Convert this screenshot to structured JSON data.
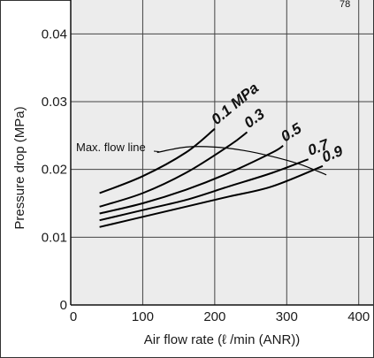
{
  "chart_data": {
    "type": "line",
    "title": "",
    "xlabel": "Air flow rate (ℓ /min (ANR))",
    "ylabel": "Pressure drop (MPa)",
    "xlim": [
      0,
      420
    ],
    "ylim": [
      0,
      0.045
    ],
    "x_ticks": [
      "0",
      "100",
      "200",
      "300",
      "400"
    ],
    "y_ticks": [
      "0",
      "0.01",
      "0.02",
      "0.03",
      "0.04"
    ],
    "grid": true,
    "series": [
      {
        "name": "0.1 MPa",
        "x": [
          40,
          100,
          160,
          200
        ],
        "y": [
          0.0165,
          0.019,
          0.0225,
          0.026
        ]
      },
      {
        "name": "0.3",
        "x": [
          40,
          100,
          160,
          220,
          245
        ],
        "y": [
          0.0145,
          0.0165,
          0.0195,
          0.0235,
          0.0255
        ]
      },
      {
        "name": "0.5",
        "x": [
          40,
          100,
          160,
          220,
          280,
          295
        ],
        "y": [
          0.0135,
          0.015,
          0.017,
          0.0195,
          0.0225,
          0.0235
        ]
      },
      {
        "name": "0.7",
        "x": [
          40,
          100,
          160,
          220,
          280,
          330
        ],
        "y": [
          0.0125,
          0.014,
          0.0155,
          0.0175,
          0.0195,
          0.0215
        ]
      },
      {
        "name": "0.9",
        "x": [
          40,
          100,
          160,
          220,
          280,
          350
        ],
        "y": [
          0.0115,
          0.013,
          0.0145,
          0.016,
          0.0175,
          0.0205
        ]
      }
    ],
    "max_flow_line": {
      "label": "Max. flow line",
      "x": [
        120,
        160,
        200,
        240,
        280,
        320,
        355
      ],
      "y": [
        0.0225,
        0.0233,
        0.0233,
        0.0228,
        0.0219,
        0.0207,
        0.0192
      ]
    },
    "corner_mark": "78"
  }
}
